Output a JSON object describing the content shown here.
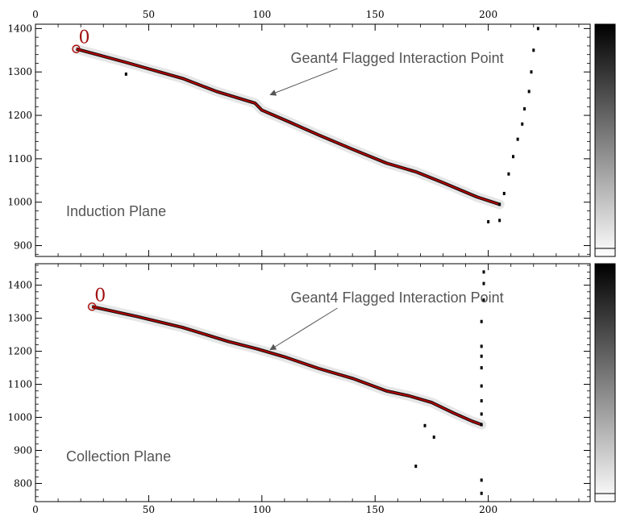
{
  "chart_data": [
    {
      "type": "line",
      "title": "",
      "panel_label": "Induction Plane",
      "annotation": "Geant4 Flagged Interaction Point",
      "vertex_label": "0",
      "xlim": [
        0,
        245
      ],
      "ylim": [
        875,
        1410
      ],
      "x_ticks": [
        0,
        50,
        100,
        150,
        200
      ],
      "y_ticks": [
        900,
        1000,
        1100,
        1200,
        1300,
        1400
      ],
      "xlabel": "",
      "ylabel": "",
      "grid": false,
      "series": [
        {
          "color": "#b00000",
          "points": [
            [
              18,
              1353
            ],
            [
              40,
              1322
            ],
            [
              65,
              1285
            ],
            [
              80,
              1255
            ],
            [
              97,
              1228
            ],
            [
              100,
              1212
            ],
            [
              112,
              1185
            ],
            [
              125,
              1155
            ],
            [
              140,
              1122
            ],
            [
              155,
              1090
            ],
            [
              168,
              1070
            ],
            [
              180,
              1045
            ],
            [
              195,
              1012
            ],
            [
              205,
              995
            ]
          ]
        }
      ],
      "hits": [
        {
          "color": "#000000",
          "points": [
            [
              205,
              995
            ],
            [
              207,
              1020
            ],
            [
              209,
              1065
            ],
            [
              211,
              1105
            ],
            [
              213,
              1145
            ],
            [
              215,
              1180
            ],
            [
              216,
              1215
            ],
            [
              218,
              1255
            ],
            [
              219,
              1300
            ],
            [
              220,
              1350
            ],
            [
              222,
              1400
            ],
            [
              205,
              958
            ],
            [
              40,
              1295
            ],
            [
              200,
              955
            ]
          ]
        }
      ],
      "annotation_arrow": {
        "from": [
          112,
          1325
        ],
        "to": [
          103,
          1240
        ]
      },
      "vertex_point": [
        18,
        1353
      ],
      "colorbar": {
        "colors": [
          "#000000",
          "#ffffff"
        ]
      }
    },
    {
      "type": "line",
      "title": "",
      "panel_label": "Collection Plane",
      "annotation": "Geant4 Flagged Interaction Point",
      "vertex_label": "0",
      "xlim": [
        0,
        245
      ],
      "ylim": [
        745,
        1465
      ],
      "x_ticks": [
        0,
        50,
        100,
        150,
        200
      ],
      "y_ticks": [
        800,
        900,
        1000,
        1100,
        1200,
        1300,
        1400
      ],
      "xlabel": "",
      "ylabel": "",
      "grid": false,
      "series": [
        {
          "color": "#b00000",
          "points": [
            [
              25,
              1335
            ],
            [
              45,
              1305
            ],
            [
              65,
              1272
            ],
            [
              85,
              1230
            ],
            [
              98,
              1207
            ],
            [
              110,
              1183
            ],
            [
              125,
              1148
            ],
            [
              140,
              1118
            ],
            [
              155,
              1080
            ],
            [
              165,
              1065
            ],
            [
              175,
              1045
            ],
            [
              185,
              1012
            ],
            [
              193,
              988
            ],
            [
              197,
              978
            ]
          ]
        }
      ],
      "hits": [
        {
          "color": "#000000",
          "points": [
            [
              197,
              978
            ],
            [
              197,
              1010
            ],
            [
              197,
              1050
            ],
            [
              197,
              1095
            ],
            [
              197,
              1150
            ],
            [
              197,
              1185
            ],
            [
              197,
              1215
            ],
            [
              197,
              1290
            ],
            [
              198,
              1355
            ],
            [
              198,
              1405
            ],
            [
              198,
              1440
            ],
            [
              168,
              852
            ],
            [
              172,
              975
            ],
            [
              176,
              940
            ],
            [
              197,
              810
            ],
            [
              197,
              770
            ]
          ]
        }
      ],
      "annotation_arrow": {
        "from": [
          112,
          1325
        ],
        "to": [
          103,
          1195
        ]
      },
      "vertex_point": [
        25,
        1335
      ],
      "colorbar": {
        "colors": [
          "#000000",
          "#ffffff"
        ]
      }
    }
  ]
}
